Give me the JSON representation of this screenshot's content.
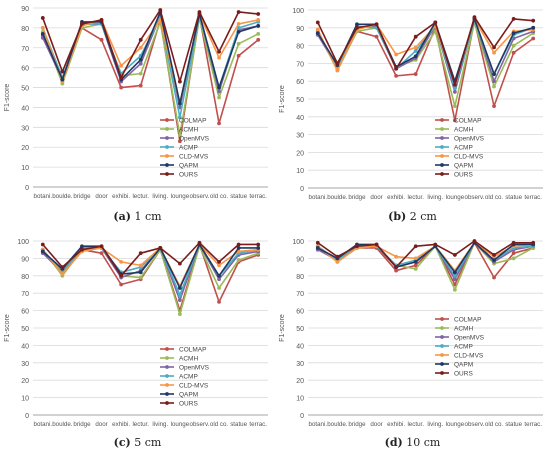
{
  "ylabel": "F1-score",
  "categories": [
    "botani.",
    "boulde.",
    "bridge",
    "door",
    "exhibi.",
    "lectur.",
    "living.",
    "lounge",
    "observ.",
    "old co.",
    "statue",
    "terrac."
  ],
  "series_styles": [
    {
      "name": "COLMAP",
      "color": "#c0504d"
    },
    {
      "name": "ACMH",
      "color": "#9bbb59"
    },
    {
      "name": "OpenMVS",
      "color": "#8064a2"
    },
    {
      "name": "ACMP",
      "color": "#4bacc6"
    },
    {
      "name": "CLD-MVS",
      "color": "#f79646"
    },
    {
      "name": "QAPM",
      "color": "#1f3864"
    },
    {
      "name": "OURS",
      "color": "#7b1c1c"
    }
  ],
  "panels": [
    {
      "label": "(a)",
      "cm": "1 cm"
    },
    {
      "label": "(b)",
      "cm": "2 cm"
    },
    {
      "label": "(c)",
      "cm": "5 cm"
    },
    {
      "label": "(d)",
      "cm": "10 cm"
    }
  ],
  "chart_data": [
    {
      "type": "line",
      "title": "(a) 1 cm",
      "ylabel": "F1-score",
      "ylim": [
        0,
        90
      ],
      "yticks": [
        0,
        10,
        20,
        30,
        40,
        50,
        60,
        70,
        80,
        90
      ],
      "categories": [
        "botani.",
        "boulde.",
        "bridge",
        "door",
        "exhibi.",
        "lectur.",
        "living.",
        "lounge",
        "observ.",
        "old co.",
        "statue",
        "terrac."
      ],
      "legend": "center-right",
      "grid": true,
      "series": [
        {
          "name": "COLMAP",
          "values": [
            76,
            54,
            80,
            74,
            50,
            51,
            84,
            23,
            86,
            32,
            66,
            74
          ]
        },
        {
          "name": "ACMH",
          "values": [
            78,
            52,
            80,
            82,
            56,
            57,
            83,
            26,
            85,
            45,
            72,
            77
          ]
        },
        {
          "name": "OpenMVS",
          "values": [
            75,
            54,
            82,
            82,
            53,
            62,
            86,
            40,
            87,
            48,
            79,
            81
          ]
        },
        {
          "name": "ACMP",
          "values": [
            80,
            55,
            82,
            82,
            57,
            66,
            85,
            35,
            86,
            50,
            80,
            83
          ]
        },
        {
          "name": "CLD-MVS",
          "values": [
            80,
            53,
            81,
            84,
            61,
            70,
            84,
            42,
            87,
            65,
            82,
            84
          ]
        },
        {
          "name": "QAPM",
          "values": [
            77,
            54,
            83,
            83,
            54,
            64,
            88,
            42,
            87,
            50,
            78,
            81
          ]
        },
        {
          "name": "OURS",
          "values": [
            85,
            58,
            82,
            84,
            55,
            74,
            89,
            53,
            88,
            68,
            88,
            87
          ]
        }
      ]
    },
    {
      "type": "line",
      "title": "(b) 2 cm",
      "ylabel": "F1-score",
      "ylim": [
        0,
        100
      ],
      "yticks": [
        0,
        10,
        20,
        30,
        40,
        50,
        60,
        70,
        80,
        90,
        100
      ],
      "categories": [
        "botani.",
        "boulde.",
        "bridge",
        "door",
        "exhibi.",
        "lectur.",
        "living.",
        "lounge",
        "observ.",
        "old co.",
        "statue",
        "terrac."
      ],
      "legend": "center-right",
      "grid": true,
      "series": [
        {
          "name": "COLMAP",
          "values": [
            87,
            67,
            88,
            85,
            63,
            64,
            90,
            38,
            94,
            46,
            76,
            84
          ]
        },
        {
          "name": "ACMH",
          "values": [
            88,
            66,
            88,
            90,
            68,
            72,
            88,
            46,
            93,
            57,
            80,
            87
          ]
        },
        {
          "name": "OpenMVS",
          "values": [
            86,
            68,
            90,
            91,
            67,
            73,
            91,
            54,
            95,
            60,
            84,
            88
          ]
        },
        {
          "name": "ACMP",
          "values": [
            88,
            67,
            91,
            90,
            67,
            77,
            91,
            56,
            94,
            64,
            86,
            90
          ]
        },
        {
          "name": "CLD-MVS",
          "values": [
            89,
            66,
            89,
            92,
            75,
            79,
            91,
            59,
            95,
            76,
            88,
            89
          ]
        },
        {
          "name": "QAPM",
          "values": [
            87,
            69,
            92,
            92,
            68,
            74,
            93,
            60,
            95,
            64,
            87,
            90
          ]
        },
        {
          "name": "OURS",
          "values": [
            93,
            70,
            90,
            92,
            67,
            85,
            93,
            58,
            96,
            79,
            95,
            94
          ]
        }
      ]
    },
    {
      "type": "line",
      "title": "(c) 5 cm",
      "ylabel": "F1-score",
      "ylim": [
        0,
        100
      ],
      "yticks": [
        0,
        10,
        20,
        30,
        40,
        50,
        60,
        70,
        80,
        90,
        100
      ],
      "categories": [
        "botani.",
        "boulde.",
        "bridge",
        "door",
        "exhibi.",
        "lectur.",
        "living.",
        "lounge",
        "observ.",
        "old co.",
        "statue",
        "terrac."
      ],
      "legend": "center-right",
      "grid": true,
      "series": [
        {
          "name": "COLMAP",
          "values": [
            94,
            83,
            95,
            93,
            75,
            78,
            95,
            60,
            98,
            65,
            88,
            92
          ]
        },
        {
          "name": "ACMH",
          "values": [
            95,
            80,
            95,
            96,
            80,
            79,
            95,
            58,
            97,
            73,
            89,
            93
          ]
        },
        {
          "name": "OpenMVS",
          "values": [
            93,
            82,
            96,
            96,
            79,
            83,
            96,
            66,
            98,
            78,
            92,
            94
          ]
        },
        {
          "name": "ACMP",
          "values": [
            95,
            82,
            96,
            96,
            82,
            85,
            96,
            69,
            98,
            80,
            93,
            95
          ]
        },
        {
          "name": "CLD-MVS",
          "values": [
            95,
            81,
            94,
            96,
            88,
            86,
            96,
            74,
            98,
            86,
            94,
            95
          ]
        },
        {
          "name": "QAPM",
          "values": [
            94,
            84,
            97,
            97,
            81,
            82,
            96,
            73,
            98,
            80,
            96,
            96
          ]
        },
        {
          "name": "OURS",
          "values": [
            98,
            85,
            95,
            97,
            80,
            93,
            96,
            87,
            99,
            88,
            98,
            98
          ]
        }
      ]
    },
    {
      "type": "line",
      "title": "(d) 10 cm",
      "ylabel": "F1-score",
      "ylim": [
        0,
        100
      ],
      "yticks": [
        0,
        10,
        20,
        30,
        40,
        50,
        60,
        70,
        80,
        90,
        100
      ],
      "categories": [
        "botani.",
        "boulde.",
        "bridge",
        "door",
        "exhibi.",
        "lectur.",
        "living.",
        "lounge",
        "observ.",
        "old co.",
        "statue",
        "terrac."
      ],
      "legend": "center",
      "grid": true,
      "series": [
        {
          "name": "COLMAP",
          "values": [
            96,
            90,
            96,
            96,
            83,
            86,
            97,
            75,
            99,
            79,
            93,
            96
          ]
        },
        {
          "name": "ACMH",
          "values": [
            97,
            88,
            96,
            97,
            86,
            84,
            97,
            72,
            99,
            87,
            90,
            96
          ]
        },
        {
          "name": "OpenMVS",
          "values": [
            95,
            89,
            97,
            97,
            85,
            88,
            97,
            78,
            99,
            88,
            95,
            97
          ]
        },
        {
          "name": "ACMP",
          "values": [
            97,
            89,
            97,
            97,
            86,
            89,
            97,
            80,
            99,
            89,
            96,
            97
          ]
        },
        {
          "name": "CLD-MVS",
          "values": [
            97,
            88,
            96,
            97,
            91,
            90,
            97,
            83,
            99,
            91,
            97,
            98
          ]
        },
        {
          "name": "QAPM",
          "values": [
            96,
            90,
            98,
            98,
            85,
            88,
            97,
            82,
            99,
            89,
            98,
            98
          ]
        },
        {
          "name": "OURS",
          "values": [
            99,
            91,
            97,
            98,
            85,
            97,
            98,
            92,
            100,
            92,
            99,
            99
          ]
        }
      ]
    }
  ]
}
